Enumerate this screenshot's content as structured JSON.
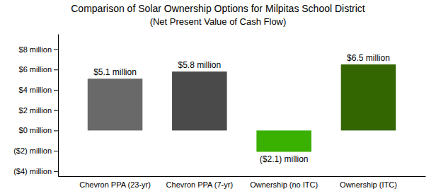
{
  "chart_data": {
    "type": "bar",
    "title": "Comparison of Solar Ownership Options for Milpitas School District",
    "subtitle": "(Net Present Value of Cash Flow)",
    "categories": [
      "Chevron PPA (23-yr)",
      "Chevron PPA (7-yr)",
      "Ownership (no ITC)",
      "Ownership (ITC)"
    ],
    "values": [
      5.1,
      5.8,
      -2.1,
      6.5
    ],
    "value_labels": [
      "$5.1 million",
      "$5.8 million",
      "($2.1) million",
      "$6.5 million"
    ],
    "colors": [
      "#696969",
      "#4a4a4a",
      "#3ab000",
      "#336600"
    ],
    "ylim": [
      -4.5,
      9.5
    ],
    "yticks": [
      {
        "value": -4,
        "label": "($4) million"
      },
      {
        "value": -2,
        "label": "($2) million"
      },
      {
        "value": 0,
        "label": "$0 million"
      },
      {
        "value": 2,
        "label": "$2 million"
      },
      {
        "value": 4,
        "label": "$4 million"
      },
      {
        "value": 6,
        "label": "$6 million"
      },
      {
        "value": 8,
        "label": "$8 million"
      }
    ],
    "data_labels": true,
    "grid": false
  }
}
